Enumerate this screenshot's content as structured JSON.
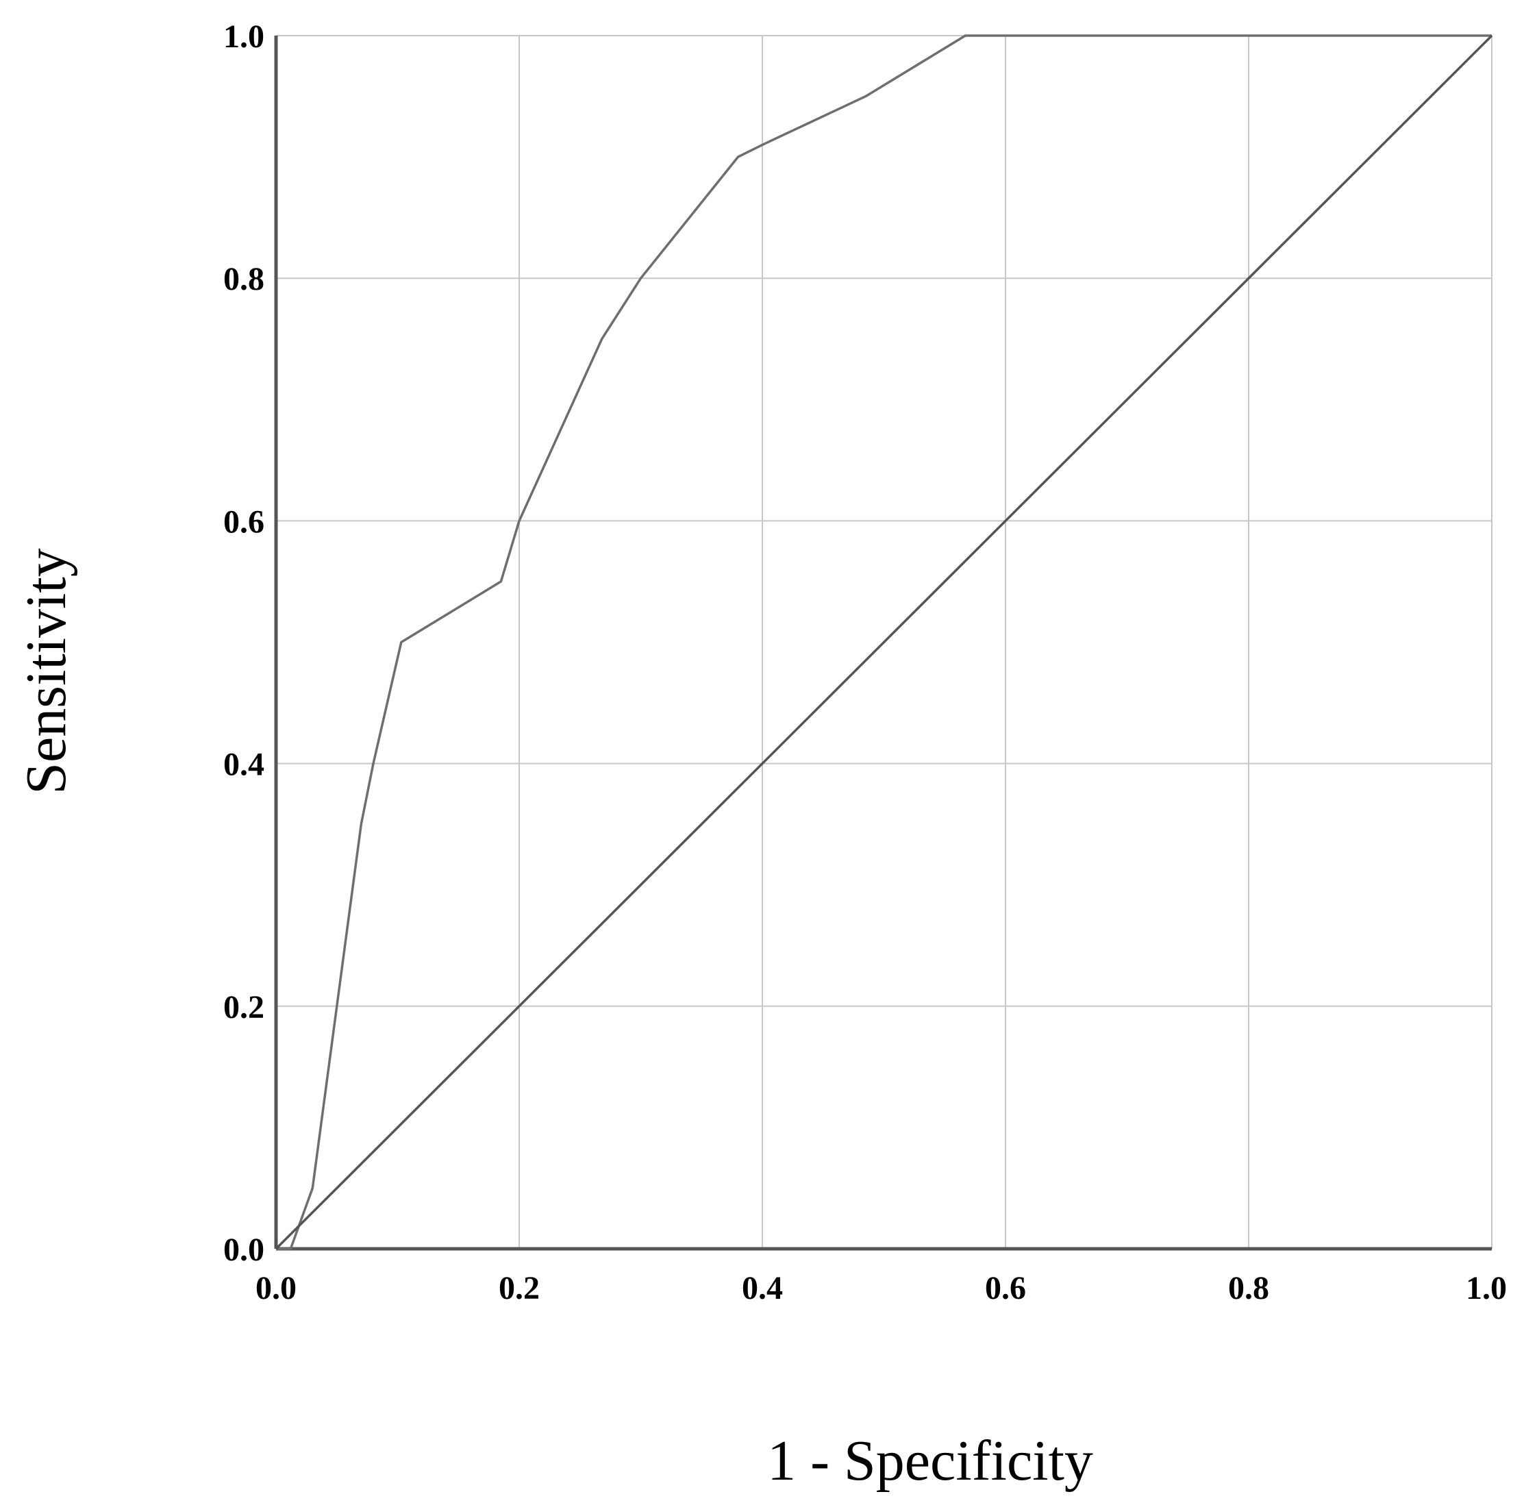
{
  "chart_data": {
    "type": "line",
    "xlabel": "1 - Specificity",
    "ylabel": "Sensitivity",
    "xlim": [
      0,
      1
    ],
    "ylim": [
      0,
      1
    ],
    "x_ticks": [
      "0.0",
      "0.2",
      "0.4",
      "0.6",
      "0.8",
      "1.0"
    ],
    "y_ticks": [
      "0.0",
      "0.2",
      "0.4",
      "0.6",
      "0.8",
      "1.0"
    ],
    "grid": true,
    "series": [
      {
        "role": "roc-curve",
        "x": [
          0.0,
          0.012,
          0.03,
          0.05,
          0.07,
          0.08,
          0.103,
          0.185,
          0.2,
          0.268,
          0.3,
          0.38,
          0.4,
          0.485,
          0.567,
          1.0
        ],
        "y": [
          0.0,
          0.0,
          0.05,
          0.2,
          0.35,
          0.4,
          0.5,
          0.55,
          0.6,
          0.75,
          0.8,
          0.9,
          0.91,
          0.95,
          1.0,
          1.0
        ]
      },
      {
        "role": "reference-line",
        "x": [
          0.0,
          1.0
        ],
        "y": [
          0.0,
          1.0
        ]
      }
    ],
    "colors": {
      "roc": "#6e6e6e",
      "reference": "#555555",
      "grid": "#c7c7c7",
      "axis": "#555555"
    }
  }
}
